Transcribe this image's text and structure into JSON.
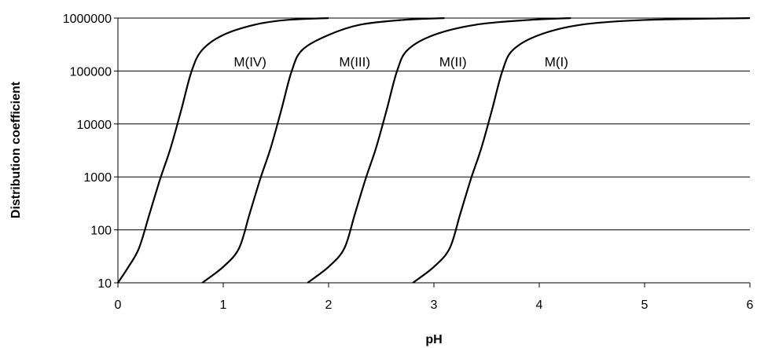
{
  "chart_data": {
    "type": "line",
    "title": "",
    "xlabel": "pH",
    "ylabel": "Distribution coefficient",
    "xlim": [
      0,
      6
    ],
    "ylim": [
      10,
      1000000
    ],
    "yscale": "log",
    "grid": "horizontal",
    "x_ticks": [
      "0",
      "1",
      "2",
      "3",
      "4",
      "5",
      "6"
    ],
    "y_ticks": [
      "10",
      "100",
      "1000",
      "10000",
      "100000",
      "1000000"
    ],
    "series": [
      {
        "name": "M(IV)",
        "x": [
          0.0,
          0.1,
          0.2,
          0.3,
          0.4,
          0.5,
          0.6,
          0.7,
          0.8,
          1.0,
          1.3,
          1.6,
          2.0
        ],
        "y": [
          10,
          20,
          45,
          200,
          900,
          3500,
          18000,
          100000,
          250000,
          480000,
          750000,
          920000,
          1000000
        ]
      },
      {
        "name": "M(III)",
        "x": [
          0.8,
          1.0,
          1.15,
          1.25,
          1.35,
          1.45,
          1.55,
          1.65,
          1.75,
          2.0,
          2.3,
          2.7,
          3.1
        ],
        "y": [
          10,
          20,
          45,
          200,
          900,
          3500,
          18000,
          100000,
          250000,
          480000,
          750000,
          920000,
          1000000
        ]
      },
      {
        "name": "M(II)",
        "x": [
          1.8,
          2.0,
          2.15,
          2.25,
          2.35,
          2.45,
          2.55,
          2.65,
          2.75,
          3.0,
          3.4,
          3.9,
          4.3
        ],
        "y": [
          10,
          20,
          45,
          200,
          900,
          3500,
          18000,
          100000,
          250000,
          480000,
          750000,
          920000,
          1000000
        ]
      },
      {
        "name": "M(I)",
        "x": [
          2.8,
          3.0,
          3.15,
          3.25,
          3.35,
          3.45,
          3.55,
          3.65,
          3.75,
          4.0,
          4.4,
          5.0,
          6.0
        ],
        "y": [
          10,
          20,
          45,
          200,
          900,
          3500,
          18000,
          100000,
          250000,
          480000,
          750000,
          920000,
          1000000
        ]
      }
    ],
    "annotations": [
      {
        "text": "M(IV)",
        "x": 1.1,
        "y": 150000
      },
      {
        "text": "M(III)",
        "x": 2.1,
        "y": 150000
      },
      {
        "text": "M(II)",
        "x": 3.05,
        "y": 150000
      },
      {
        "text": "M(I)",
        "x": 4.05,
        "y": 150000
      }
    ]
  }
}
